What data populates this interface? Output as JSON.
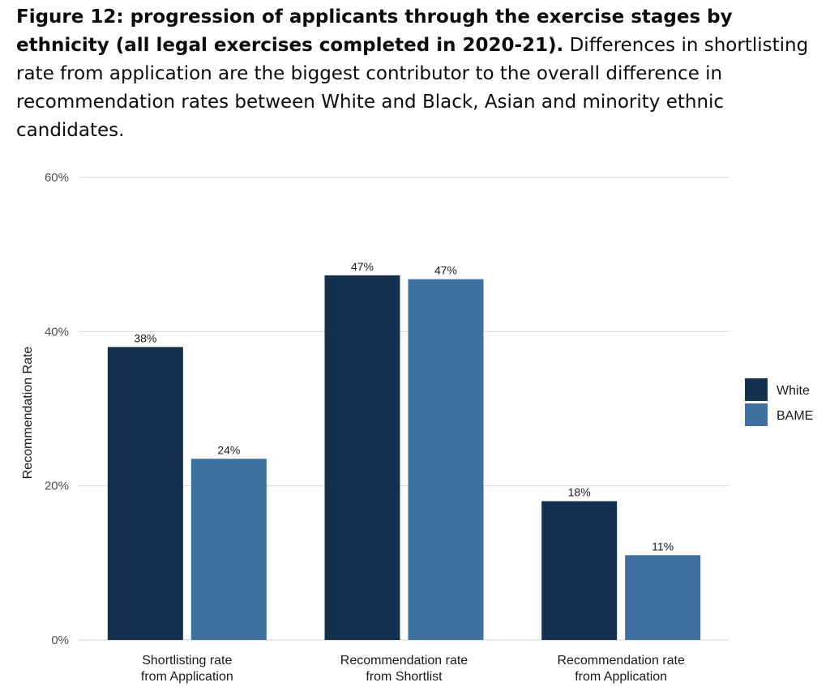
{
  "caption": {
    "bold": "Figure 12: progression of applicants through the exercise stages by ethnicity (all legal exercises completed in 2020-21).",
    "text": " Differences in shortlisting rate from application are the biggest contributor to the overall difference in recommendation rates between White and Black, Asian and minority ethnic candidates."
  },
  "chart_data": {
    "type": "bar",
    "categories": [
      [
        "Shortlisting rate",
        "from Application"
      ],
      [
        "Recommendation rate",
        "from Shortlist"
      ],
      [
        "Recommendation rate",
        "from Application"
      ]
    ],
    "series": [
      {
        "name": "White",
        "color": "#14304f",
        "values": [
          38,
          47.3,
          18
        ],
        "labels": [
          "38%",
          "47%",
          "18%"
        ]
      },
      {
        "name": "BAME",
        "color": "#3e71a0",
        "values": [
          23.5,
          46.8,
          11
        ],
        "labels": [
          "24%",
          "47%",
          "11%"
        ]
      }
    ],
    "xlabel": "",
    "ylabel": "Recommendation Rate",
    "ylim": [
      0,
      60
    ],
    "yticks": [
      "0%",
      "20%",
      "40%",
      "60%"
    ],
    "ytick_values": [
      0,
      20,
      40,
      60
    ],
    "grid": true,
    "legend_position": "right"
  }
}
